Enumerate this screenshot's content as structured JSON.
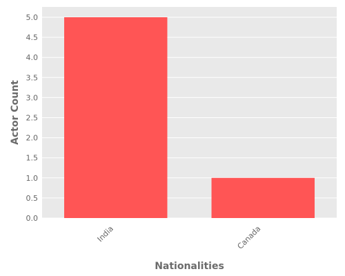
{
  "chart_data": {
    "type": "bar",
    "categories": [
      "India",
      "Canada"
    ],
    "values": [
      5,
      1
    ],
    "xlabel": "Nationalities",
    "ylabel": "Actor Count",
    "ylim": [
      0,
      5
    ],
    "yticks": [
      "0.0",
      "0.5",
      "1.0",
      "1.5",
      "2.0",
      "2.5",
      "3.0",
      "3.5",
      "4.0",
      "4.5",
      "5.0"
    ],
    "grid": true,
    "colors": {
      "bar": "#ff5555",
      "panel": "#e9e9e9",
      "grid": "#ffffff"
    }
  }
}
